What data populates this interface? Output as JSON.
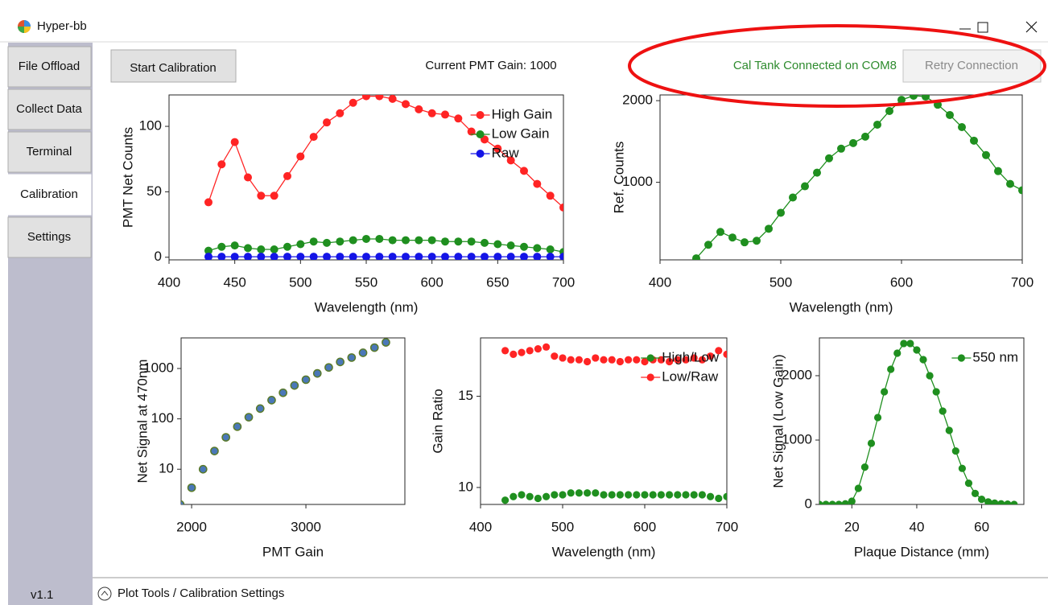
{
  "window": {
    "title": "Hyper-bb"
  },
  "tabs": [
    "File Offload",
    "Collect Data",
    "Terminal",
    "Calibration",
    "Settings"
  ],
  "active_tab_index": 3,
  "version": "v1.1",
  "toolbar": {
    "start_button": "Start Calibration",
    "gain_status": "Current PMT Gain: 1000",
    "connection_status": "Cal Tank Connected on COM8",
    "retry_button": "Retry Connection"
  },
  "footer": "Plot Tools / Calibration Settings",
  "chart_data": [
    {
      "type": "line",
      "xlabel": "Wavelength (nm)",
      "ylabel": "PMT Net Counts",
      "xlim": [
        400,
        700
      ],
      "xticks": [
        400,
        450,
        500,
        550,
        600,
        650,
        700
      ],
      "ylim": [
        -2,
        124
      ],
      "yticks": [
        0,
        50,
        100
      ],
      "legend": "upper right",
      "x": [
        430,
        440,
        450,
        460,
        470,
        480,
        490,
        500,
        510,
        520,
        530,
        540,
        550,
        560,
        570,
        580,
        590,
        600,
        610,
        620,
        630,
        640,
        650,
        660,
        670,
        680,
        690,
        700
      ],
      "series": [
        {
          "name": "High Gain",
          "color": "#ff2424",
          "values": [
            42,
            71,
            88,
            61,
            47,
            47,
            62,
            77,
            92,
            103,
            110,
            118,
            123,
            123,
            121,
            117,
            113,
            110,
            109,
            106,
            96,
            90,
            83,
            74,
            66,
            56,
            47,
            38
          ]
        },
        {
          "name": "Low Gain",
          "color": "#1f8f1f",
          "values": [
            5,
            8,
            9,
            7,
            6,
            6,
            8,
            10,
            12,
            11,
            12,
            13,
            14,
            14,
            13,
            13,
            13,
            13,
            12,
            12,
            12,
            11,
            10,
            9,
            8,
            7,
            6,
            4
          ]
        },
        {
          "name": "Raw",
          "color": "#1414e6",
          "values": [
            0.4,
            0.4,
            0.4,
            0.4,
            0.4,
            0.4,
            0.4,
            0.4,
            0.4,
            0.4,
            0.4,
            0.4,
            0.4,
            0.4,
            0.4,
            0.4,
            0.4,
            0.4,
            0.4,
            0.4,
            0.4,
            0.4,
            0.4,
            0.4,
            0.4,
            0.4,
            0.4,
            0.4
          ]
        }
      ]
    },
    {
      "type": "line",
      "xlabel": "Wavelength (nm)",
      "ylabel": "Ref. Counts",
      "xlim": [
        400,
        700
      ],
      "xticks": [
        400,
        500,
        600,
        700
      ],
      "ylim": [
        50,
        2070
      ],
      "yticks": [
        1000,
        2000
      ],
      "x": [
        430,
        440,
        450,
        460,
        470,
        480,
        490,
        500,
        510,
        520,
        530,
        540,
        550,
        560,
        570,
        580,
        590,
        600,
        610,
        620,
        630,
        640,
        650,
        660,
        670,
        680,
        690,
        700
      ],
      "series": [
        {
          "color": "#1f8f1f",
          "values": [
            69,
            235,
            392,
            324,
            265,
            284,
            431,
            627,
            814,
            951,
            1118,
            1294,
            1412,
            1480,
            1559,
            1706,
            1873,
            2010,
            2060,
            2050,
            1950,
            1824,
            1676,
            1510,
            1333,
            1137,
            980,
            902
          ]
        }
      ]
    },
    {
      "type": "scatter",
      "xlabel": "PMT Gain",
      "ylabel": "Net Signal at 470nm",
      "xlim": [
        1908,
        3866
      ],
      "xticks": [
        2000,
        3000
      ],
      "ylim": [
        2,
        4050
      ],
      "ylog": true,
      "yticks": [
        10,
        100,
        1000
      ],
      "x": [
        1900,
        2000,
        2100,
        2200,
        2300,
        2400,
        2500,
        2600,
        2700,
        2800,
        2900,
        3000,
        3100,
        3200,
        3300,
        3400,
        3500,
        3600,
        3700
      ],
      "series": [
        {
          "color": "#4a78b8",
          "edgecolor": "#5a7a2a",
          "values": [
            2,
            4.3,
            10,
            23,
            43,
            70,
            108,
            160,
            235,
            330,
            460,
            600,
            800,
            1050,
            1350,
            1650,
            2050,
            2600,
            3300
          ]
        }
      ]
    },
    {
      "type": "scatter",
      "xlabel": "Wavelength (nm)",
      "ylabel": "Gain Ratio",
      "xlim": [
        400,
        700
      ],
      "xticks": [
        400,
        500,
        600,
        700
      ],
      "ylim": [
        9.07,
        18.2
      ],
      "yticks": [
        10,
        15
      ],
      "legend": "upper right",
      "x": [
        430,
        440,
        450,
        460,
        470,
        480,
        490,
        500,
        510,
        520,
        530,
        540,
        550,
        560,
        570,
        580,
        590,
        600,
        610,
        620,
        630,
        640,
        650,
        660,
        670,
        680,
        690,
        700
      ],
      "series": [
        {
          "name": "High/Low",
          "color": "#1f8f1f",
          "values": [
            9.3,
            9.5,
            9.6,
            9.5,
            9.4,
            9.5,
            9.6,
            9.6,
            9.7,
            9.7,
            9.7,
            9.7,
            9.6,
            9.6,
            9.6,
            9.6,
            9.6,
            9.6,
            9.6,
            9.6,
            9.6,
            9.6,
            9.6,
            9.6,
            9.6,
            9.5,
            9.4,
            9.5
          ]
        },
        {
          "name": "Low/Raw",
          "color": "#ff2424",
          "values": [
            17.5,
            17.3,
            17.4,
            17.5,
            17.6,
            17.7,
            17.2,
            17.1,
            17.0,
            17.0,
            16.9,
            17.1,
            17.0,
            17.0,
            16.9,
            17.0,
            17.0,
            16.9,
            17.0,
            17.0,
            16.9,
            17.0,
            17.0,
            17.1,
            17.0,
            17.2,
            17.5,
            17.3
          ]
        }
      ]
    },
    {
      "type": "line",
      "xlabel": "Plaque Distance (mm)",
      "ylabel": "Net Signal (Low Gain)",
      "xlim": [
        10,
        73
      ],
      "xticks": [
        20,
        40,
        60
      ],
      "ylim": [
        0,
        2587
      ],
      "yticks": [
        0,
        1000,
        2000
      ],
      "legend": "upper right",
      "x": [
        10,
        12,
        14,
        16,
        18,
        20,
        22,
        24,
        26,
        28,
        30,
        32,
        34,
        36,
        38,
        40,
        42,
        44,
        46,
        48,
        50,
        52,
        54,
        56,
        58,
        60,
        62,
        64,
        66,
        68,
        70
      ],
      "series": [
        {
          "name": "550 nm",
          "color": "#1f8f1f",
          "values": [
            0,
            0,
            0,
            0,
            10,
            50,
            250,
            580,
            950,
            1350,
            1750,
            2100,
            2350,
            2500,
            2500,
            2400,
            2250,
            2000,
            1750,
            1450,
            1150,
            830,
            560,
            330,
            170,
            80,
            40,
            20,
            10,
            5,
            0
          ]
        }
      ]
    }
  ]
}
